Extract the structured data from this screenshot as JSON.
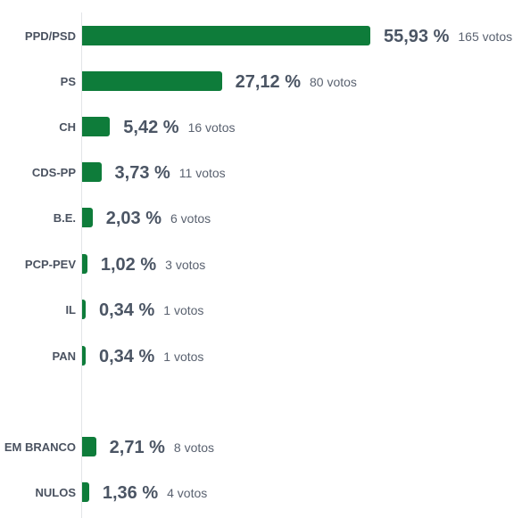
{
  "chart_data": {
    "type": "bar",
    "orientation": "horizontal",
    "title": "",
    "xlabel": "",
    "ylabel": "",
    "bar_color": "#0e7c3a",
    "categories": [
      "PPD/PSD",
      "PS",
      "CH",
      "CDS-PP",
      "B.E.",
      "PCP-PEV",
      "IL",
      "PAN",
      "EM BRANCO",
      "NULOS"
    ],
    "values": [
      55.93,
      27.12,
      5.42,
      3.73,
      2.03,
      1.02,
      0.34,
      0.34,
      2.71,
      1.36
    ],
    "percent_labels": [
      "55,93 %",
      "27,12 %",
      "5,42 %",
      "3,73 %",
      "2,03 %",
      "1,02 %",
      "0,34 %",
      "0,34 %",
      "2,71 %",
      "1,36 %"
    ],
    "votes": [
      165,
      80,
      16,
      11,
      6,
      3,
      1,
      1,
      8,
      4
    ],
    "vote_labels": [
      "165 votos",
      "80 votos",
      "16 votos",
      "11 votos",
      "6 votos",
      "3 votos",
      "1 votos",
      "1 votos",
      "8 votos",
      "4 votos"
    ],
    "xlim": [
      0,
      55.93
    ],
    "grid": false,
    "legend": "none"
  }
}
